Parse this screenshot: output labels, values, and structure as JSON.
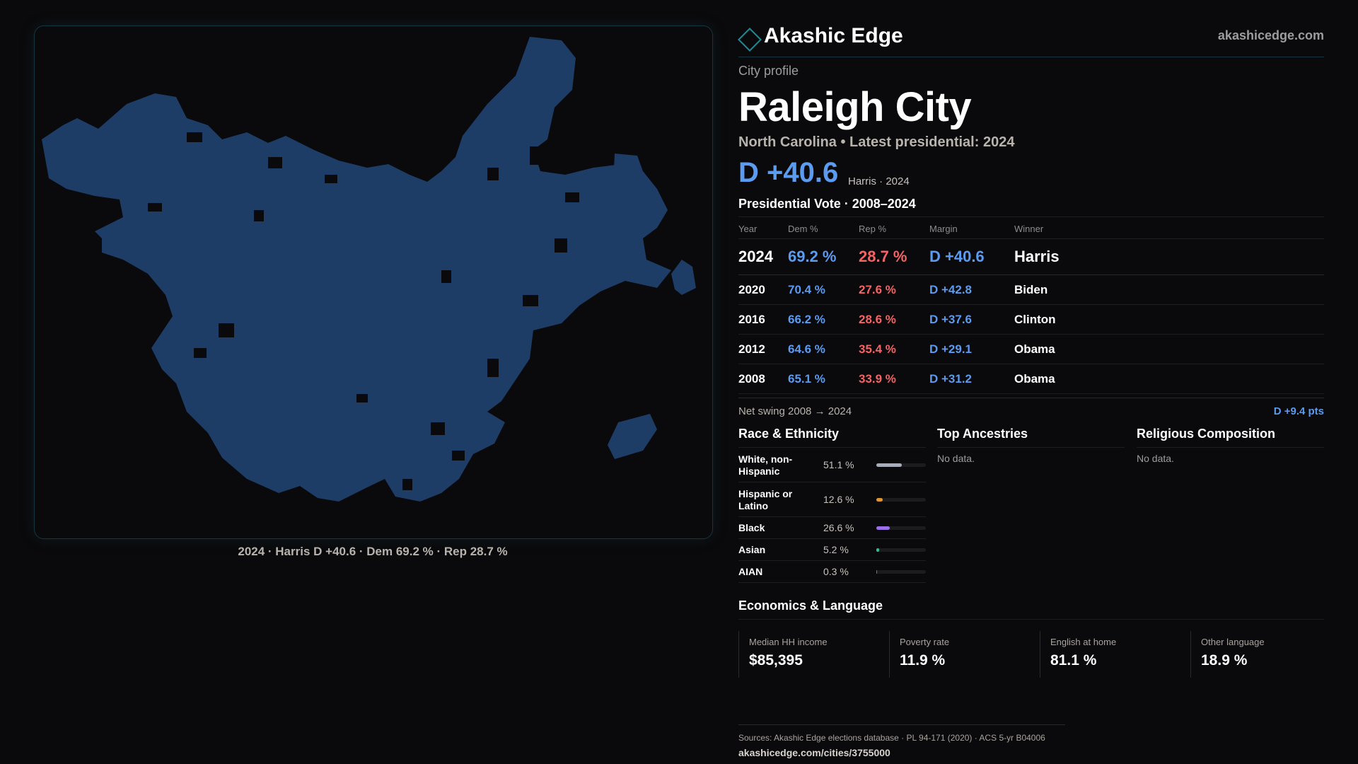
{
  "map": {
    "caption": "2024 · Harris D +40.6 · Dem 69.2 % · Rep 28.7 %",
    "fill_color": "#1e3d66"
  },
  "brand": {
    "name": "Akashic Edge",
    "url": "akashicedge.com",
    "logo_icon": "diamond-icon"
  },
  "profile": {
    "eyebrow": "City profile",
    "title": "Raleigh City",
    "subtitle": "North Carolina • Latest presidential: 2024",
    "hero_margin": "D +40.6",
    "hero_note": "Harris · 2024"
  },
  "vote": {
    "title": "Presidential Vote · 2008–2024",
    "headers": {
      "year": "Year",
      "dem": "Dem %",
      "rep": "Rep %",
      "margin": "Margin",
      "winner": "Winner"
    },
    "rows": [
      {
        "year": "2024",
        "dem": "69.2 %",
        "rep": "28.7 %",
        "margin": "D +40.6",
        "winner": "Harris"
      },
      {
        "year": "2020",
        "dem": "70.4 %",
        "rep": "27.6 %",
        "margin": "D +42.8",
        "winner": "Biden"
      },
      {
        "year": "2016",
        "dem": "66.2 %",
        "rep": "28.6 %",
        "margin": "D +37.6",
        "winner": "Clinton"
      },
      {
        "year": "2012",
        "dem": "64.6 %",
        "rep": "35.4 %",
        "margin": "D +29.1",
        "winner": "Obama"
      },
      {
        "year": "2008",
        "dem": "65.1 %",
        "rep": "33.9 %",
        "margin": "D +31.2",
        "winner": "Obama"
      }
    ],
    "swing_label": "Net swing 2008 → 2024",
    "swing_value": "D +9.4 pts"
  },
  "race": {
    "title": "Race & Ethnicity",
    "rows": [
      {
        "label": "White, non-Hispanic",
        "pct": "51.1 %",
        "share": 0.511,
        "color": "#a7adbb"
      },
      {
        "label": "Hispanic or Latino",
        "pct": "12.6 %",
        "share": 0.126,
        "color": "#e0962e"
      },
      {
        "label": "Black",
        "pct": "26.6 %",
        "share": 0.266,
        "color": "#9b6fe8"
      },
      {
        "label": "Asian",
        "pct": "5.2 %",
        "share": 0.052,
        "color": "#2fbf8c"
      },
      {
        "label": "AIAN",
        "pct": "0.3 %",
        "share": 0.003,
        "color": "#c9573b"
      }
    ]
  },
  "ancestries": {
    "title": "Top Ancestries",
    "empty": "No data."
  },
  "religion": {
    "title": "Religious Composition",
    "empty": "No data."
  },
  "economics": {
    "title": "Economics & Language",
    "stats": [
      {
        "label": "Median HH income",
        "value": "$85,395"
      },
      {
        "label": "Poverty rate",
        "value": "11.9 %"
      },
      {
        "label": "English at home",
        "value": "81.1 %"
      },
      {
        "label": "Other language",
        "value": "18.9 %"
      }
    ]
  },
  "footer": {
    "sources": "Sources: Akashic Edge elections database · PL 94-171 (2020) · ACS 5-yr B04006",
    "url": "akashicedge.com/cities/3755000"
  }
}
